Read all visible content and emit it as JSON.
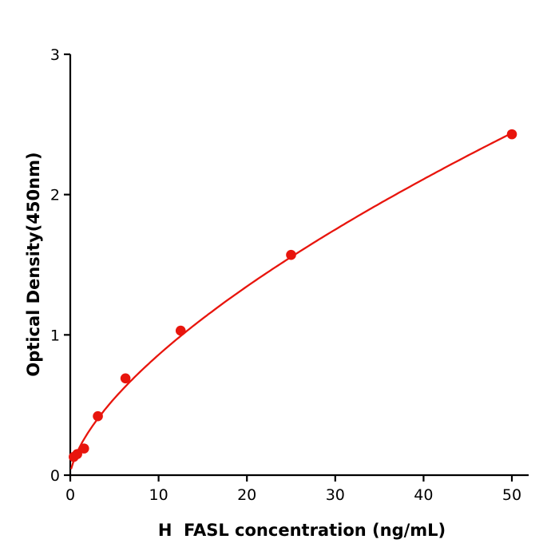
{
  "figure": {
    "background": "#ffffff"
  },
  "chart_data": {
    "type": "scatter",
    "title": "",
    "xlabel": "H  FASL concentration (ng/mL)",
    "ylabel": "Optical Density(450nm)",
    "x": [
      0.39,
      0.78,
      1.56,
      3.125,
      6.25,
      12.5,
      25,
      50
    ],
    "y": [
      0.13,
      0.15,
      0.19,
      0.42,
      0.69,
      1.03,
      1.57,
      2.43
    ],
    "xlim": [
      0,
      52
    ],
    "ylim": [
      0,
      3
    ],
    "x_ticks": [
      0,
      10,
      20,
      30,
      40,
      50
    ],
    "y_ticks": [
      0,
      1,
      2,
      3
    ],
    "grid": false,
    "legend": null,
    "curve": "power-law fit through data points",
    "series_color": "#e8150d",
    "axis_color": "#000000"
  }
}
